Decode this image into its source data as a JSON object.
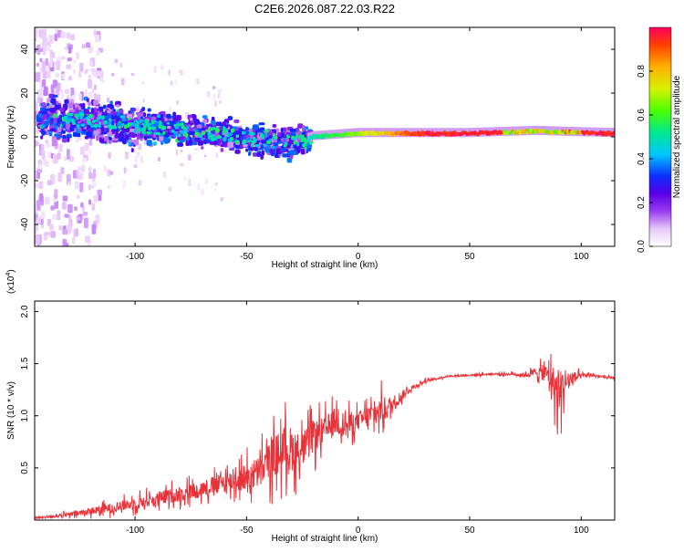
{
  "chart_data": [
    {
      "type": "heatmap",
      "title": "C2E6.2026.087.22.03.R22",
      "xlabel": "Height of straight line (km)",
      "ylabel": "Frequency (Hz)",
      "xlim": [
        -145,
        115
      ],
      "ylim": [
        -50,
        50
      ],
      "x_ticks": [
        -100,
        -50,
        0,
        50,
        100
      ],
      "y_ticks": [
        -40,
        -20,
        0,
        20,
        40
      ],
      "colorbar": {
        "label": "Normalized spectral amplitude",
        "range": [
          0,
          1
        ],
        "ticks": [
          0.0,
          0.2,
          0.4,
          0.6,
          0.8
        ],
        "tick_labels": [
          "0.0",
          "0.2",
          "0.4",
          "0.6",
          "0.8"
        ],
        "colormap": [
          "#ffffff",
          "#e8c8f8",
          "#9b3df0",
          "#5a00e6",
          "#0b2cff",
          "#00c8ff",
          "#00e890",
          "#4cff00",
          "#d8f000",
          "#ffb000",
          "#ff4000",
          "#ff0060"
        ]
      },
      "ridge": [
        {
          "x": -140,
          "y": 8
        },
        {
          "x": -120,
          "y": 7
        },
        {
          "x": -100,
          "y": 5
        },
        {
          "x": -80,
          "y": 3
        },
        {
          "x": -60,
          "y": 1
        },
        {
          "x": -40,
          "y": -2
        },
        {
          "x": -30,
          "y": -3
        },
        {
          "x": -20,
          "y": 0
        },
        {
          "x": 0,
          "y": 1.5
        },
        {
          "x": 50,
          "y": 1.5
        },
        {
          "x": 80,
          "y": 2.5
        },
        {
          "x": 95,
          "y": 2
        },
        {
          "x": 115,
          "y": 1.5
        }
      ]
    },
    {
      "type": "line",
      "xlabel": "Height of straight line (km)",
      "ylabel": "SNR (10 * v/v)",
      "y_multiplier_label": "(x10",
      "y_multiplier_exponent": "4",
      "xlim": [
        -145,
        115
      ],
      "ylim": [
        0,
        21000
      ],
      "x_ticks": [
        -100,
        -50,
        0,
        50,
        100
      ],
      "y_ticks": [
        5000,
        10000,
        15000,
        20000
      ],
      "y_tick_labels": [
        "0.5",
        "1.0",
        "1.5",
        "2.0"
      ],
      "line_color": "#e8323a",
      "series": [
        {
          "name": "SNR",
          "x": [
            -145,
            -130,
            -110,
            -90,
            -70,
            -55,
            -45,
            -38,
            -32,
            -26,
            -20,
            -15,
            -10,
            -5,
            0,
            5,
            10,
            15,
            20,
            25,
            30,
            40,
            60,
            70,
            75,
            80,
            85,
            88,
            90,
            92,
            95,
            100,
            105,
            110,
            115
          ],
          "values": [
            200,
            500,
            1200,
            2000,
            3000,
            3800,
            4500,
            6000,
            7000,
            6500,
            8000,
            8500,
            9500,
            9000,
            9500,
            10000,
            10500,
            11000,
            12000,
            12800,
            13300,
            13800,
            14000,
            14000,
            13900,
            14200,
            14000,
            13000,
            12000,
            13000,
            13500,
            13800,
            13900,
            13700,
            13600
          ],
          "amplitude": [
            200,
            500,
            1000,
            1500,
            1800,
            2500,
            3500,
            4500,
            5000,
            4000,
            3500,
            3000,
            3000,
            2500,
            2000,
            2500,
            3000,
            2000,
            1000,
            500,
            300,
            200,
            200,
            300,
            500,
            1000,
            2000,
            4000,
            5000,
            4000,
            2000,
            500,
            300,
            300,
            300
          ]
        }
      ]
    }
  ]
}
